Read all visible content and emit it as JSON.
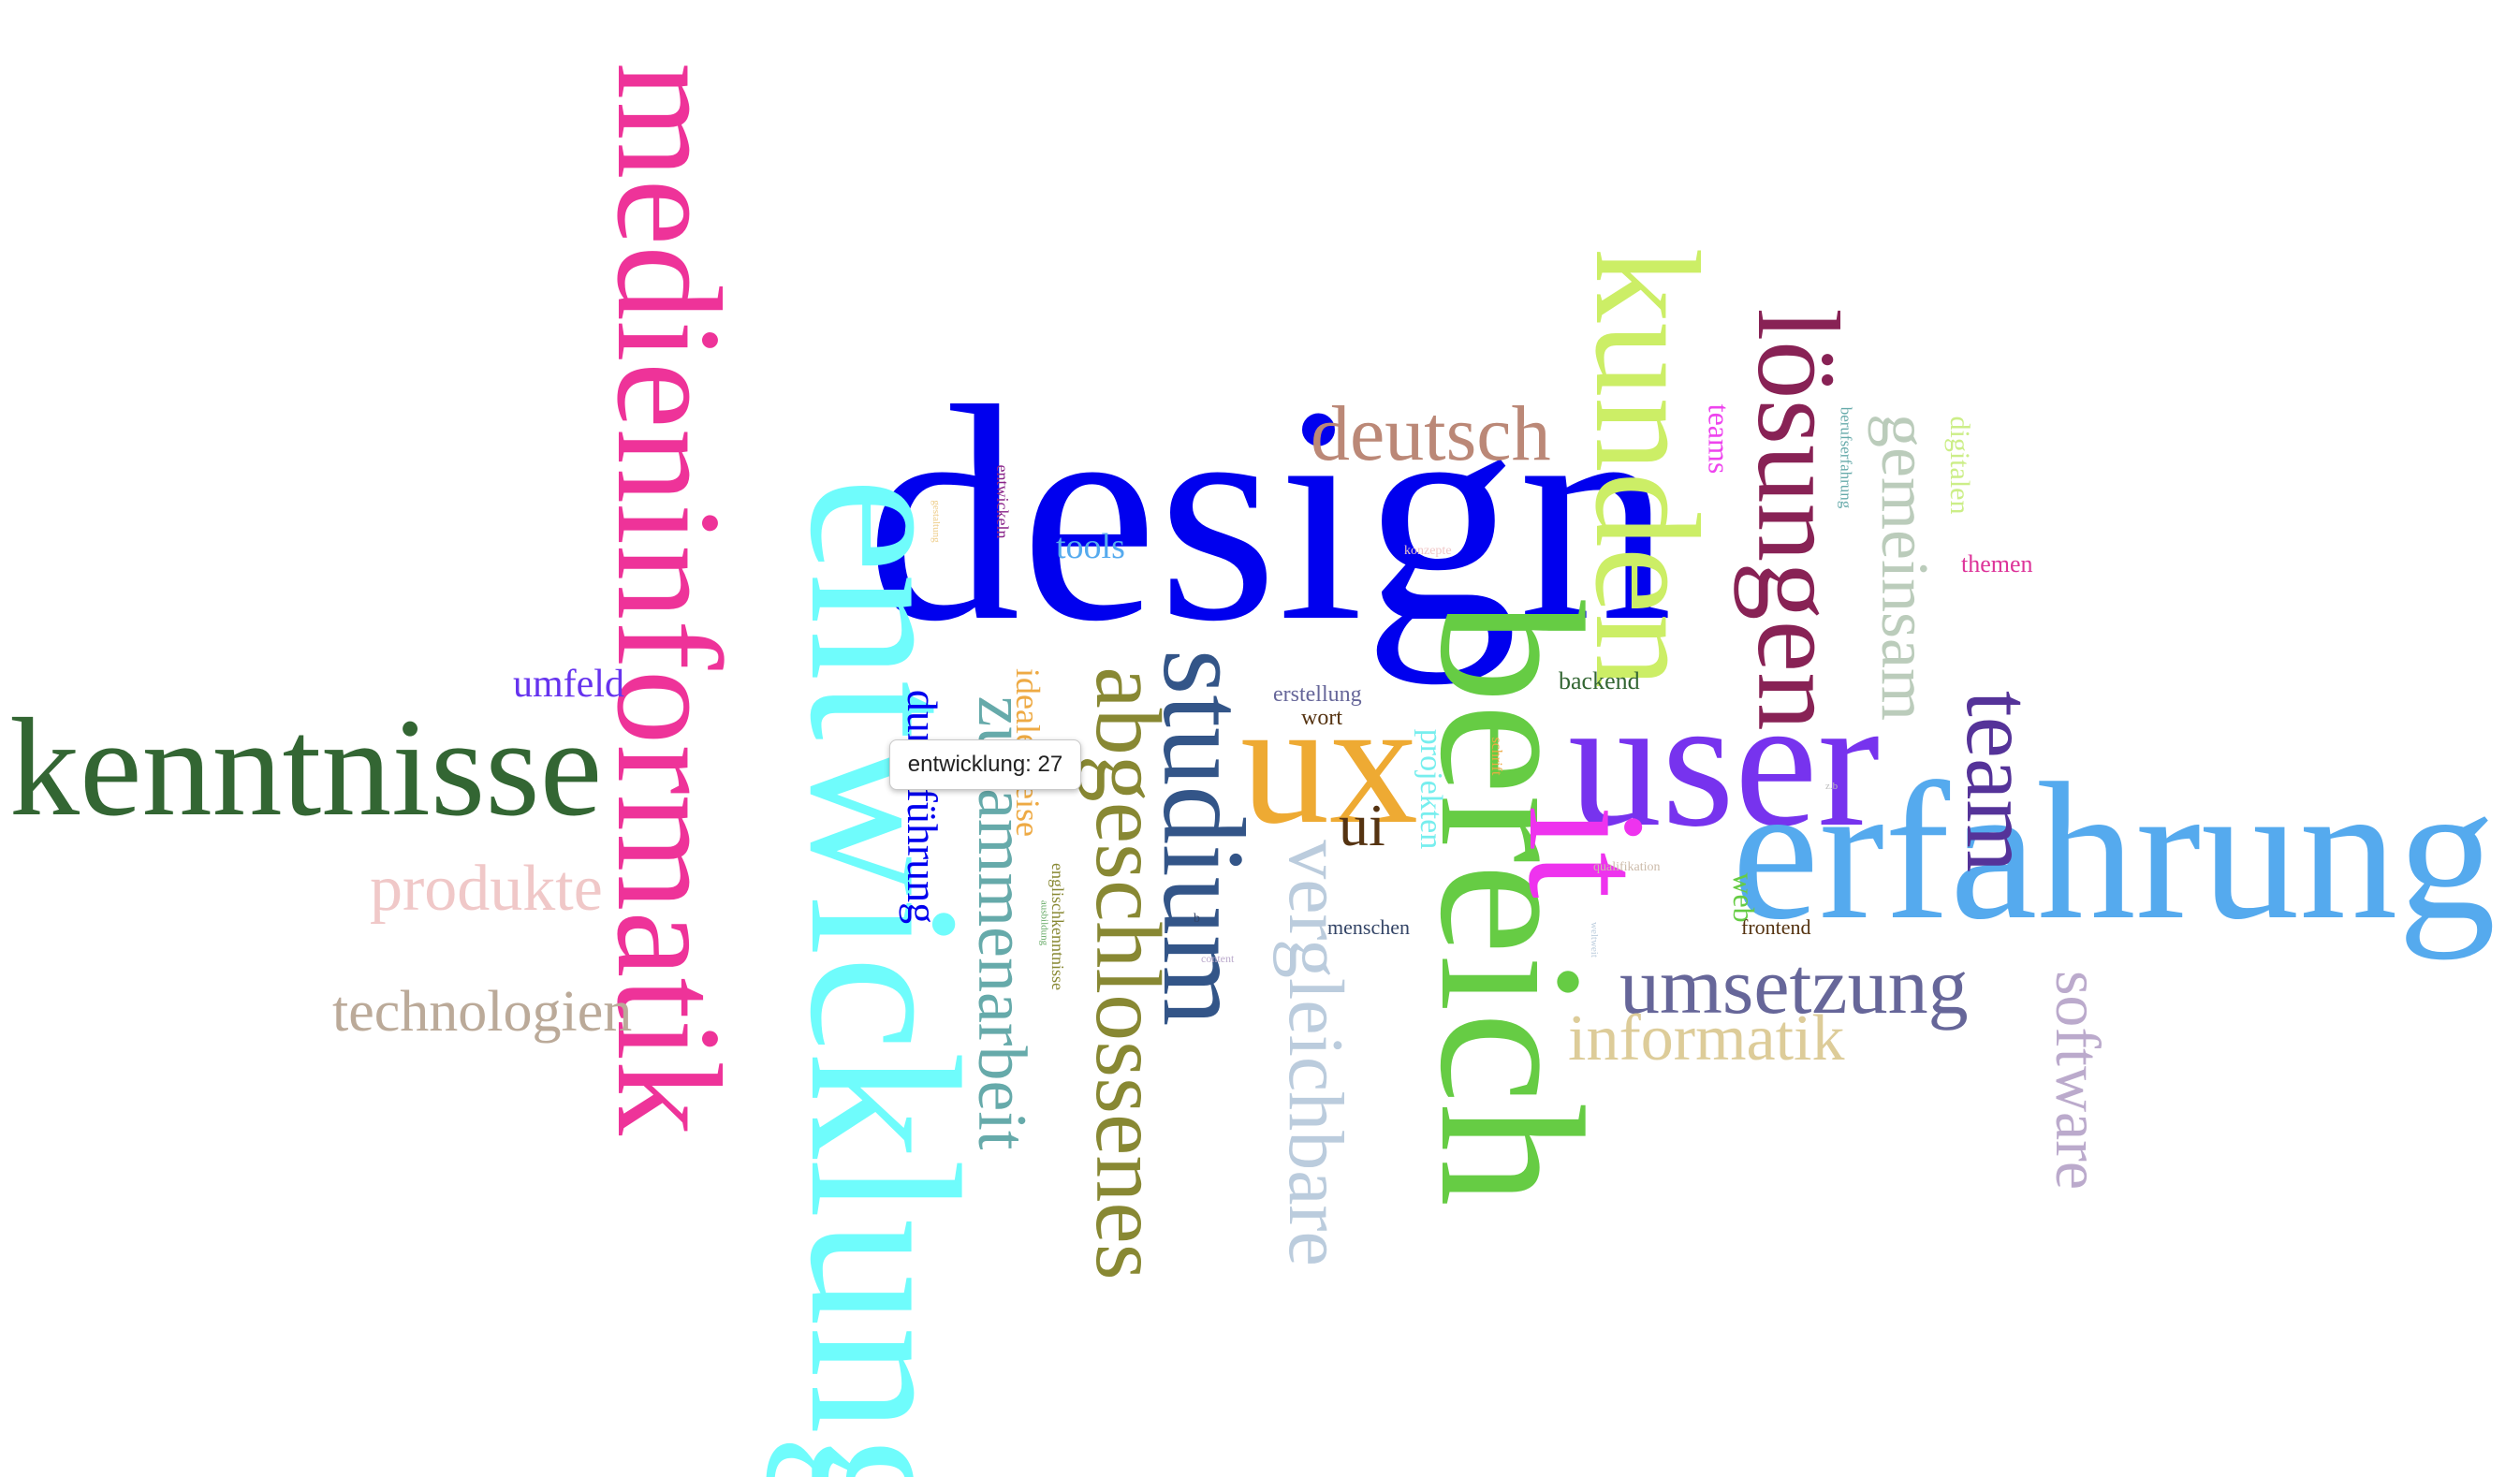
{
  "tooltip": {
    "word": "entwicklung",
    "count": "27",
    "text": "entwicklung: 27"
  },
  "words": [
    {
      "text": "design",
      "color": "#0000ee"
    },
    {
      "text": "entwicklung",
      "color": "#6ffcfc"
    },
    {
      "text": "medieninformatik",
      "color": "#ee3399"
    },
    {
      "text": "kenntnisse",
      "color": "#336633"
    },
    {
      "text": "bereich",
      "color": "#66cc44"
    },
    {
      "text": "user",
      "color": "#7733ee"
    },
    {
      "text": "erfahrung",
      "color": "#55aaee"
    },
    {
      "text": "kunden",
      "color": "#ccee66"
    },
    {
      "text": "lösungen",
      "color": "#882255"
    },
    {
      "text": "ux",
      "color": "#eeaa33"
    },
    {
      "text": "it",
      "color": "#ee33ee"
    },
    {
      "text": "studium",
      "color": "#335588"
    },
    {
      "text": "abgeschlossenes",
      "color": "#888833"
    },
    {
      "text": "zusammenarbeit",
      "color": "#66aaaa"
    },
    {
      "text": "vergleichbare",
      "color": "#bbccdd"
    },
    {
      "text": "deutsch",
      "color": "#bb8877"
    },
    {
      "text": "team",
      "color": "#553399"
    },
    {
      "text": "gemeinsam",
      "color": "#bbccbb"
    },
    {
      "text": "umsetzung",
      "color": "#666699"
    },
    {
      "text": "software",
      "color": "#bbaacc"
    },
    {
      "text": "informatik",
      "color": "#ddcc99"
    },
    {
      "text": "produkte",
      "color": "#f0c8c8"
    },
    {
      "text": "technologien",
      "color": "#bbaa99"
    },
    {
      "text": "umfeld",
      "color": "#6633ee"
    },
    {
      "text": "durchführung",
      "color": "#0000ee"
    },
    {
      "text": "idealerweise",
      "color": "#eeaa44"
    },
    {
      "text": "tools",
      "color": "#55aaee"
    },
    {
      "text": "ui",
      "color": "#553311"
    },
    {
      "text": "projekten",
      "color": "#77eeee"
    },
    {
      "text": "teams",
      "color": "#ee44ee"
    },
    {
      "text": "digitalen",
      "color": "#ccee88"
    },
    {
      "text": "themen",
      "color": "#dd3399"
    },
    {
      "text": "backend",
      "color": "#336633"
    },
    {
      "text": "erstellung",
      "color": "#666699"
    },
    {
      "text": "wort",
      "color": "#553311"
    },
    {
      "text": "menschen",
      "color": "#334466"
    },
    {
      "text": "web",
      "color": "#66cc44"
    },
    {
      "text": "frontend",
      "color": "#553311"
    },
    {
      "text": "englischkenntnisse",
      "color": "#888833"
    },
    {
      "text": "entwickeln",
      "color": "#882288"
    },
    {
      "text": "berufserfahrung",
      "color": "#66aaaa"
    },
    {
      "text": "schrift",
      "color": "#eeaa44"
    },
    {
      "text": "konzepte",
      "color": "#f0c8c8"
    },
    {
      "text": "qualifikation",
      "color": "#ccbbaa"
    },
    {
      "text": "weltweit",
      "color": "#bbccdd"
    },
    {
      "text": "content",
      "color": "#bbaacc"
    },
    {
      "text": "ausbildung",
      "color": "#66aa66"
    },
    {
      "text": "gestaltung",
      "color": "#eecc88"
    },
    {
      "text": "z.b",
      "color": "#bbbbbb"
    },
    {
      "text": "b",
      "color": "#334466"
    }
  ]
}
